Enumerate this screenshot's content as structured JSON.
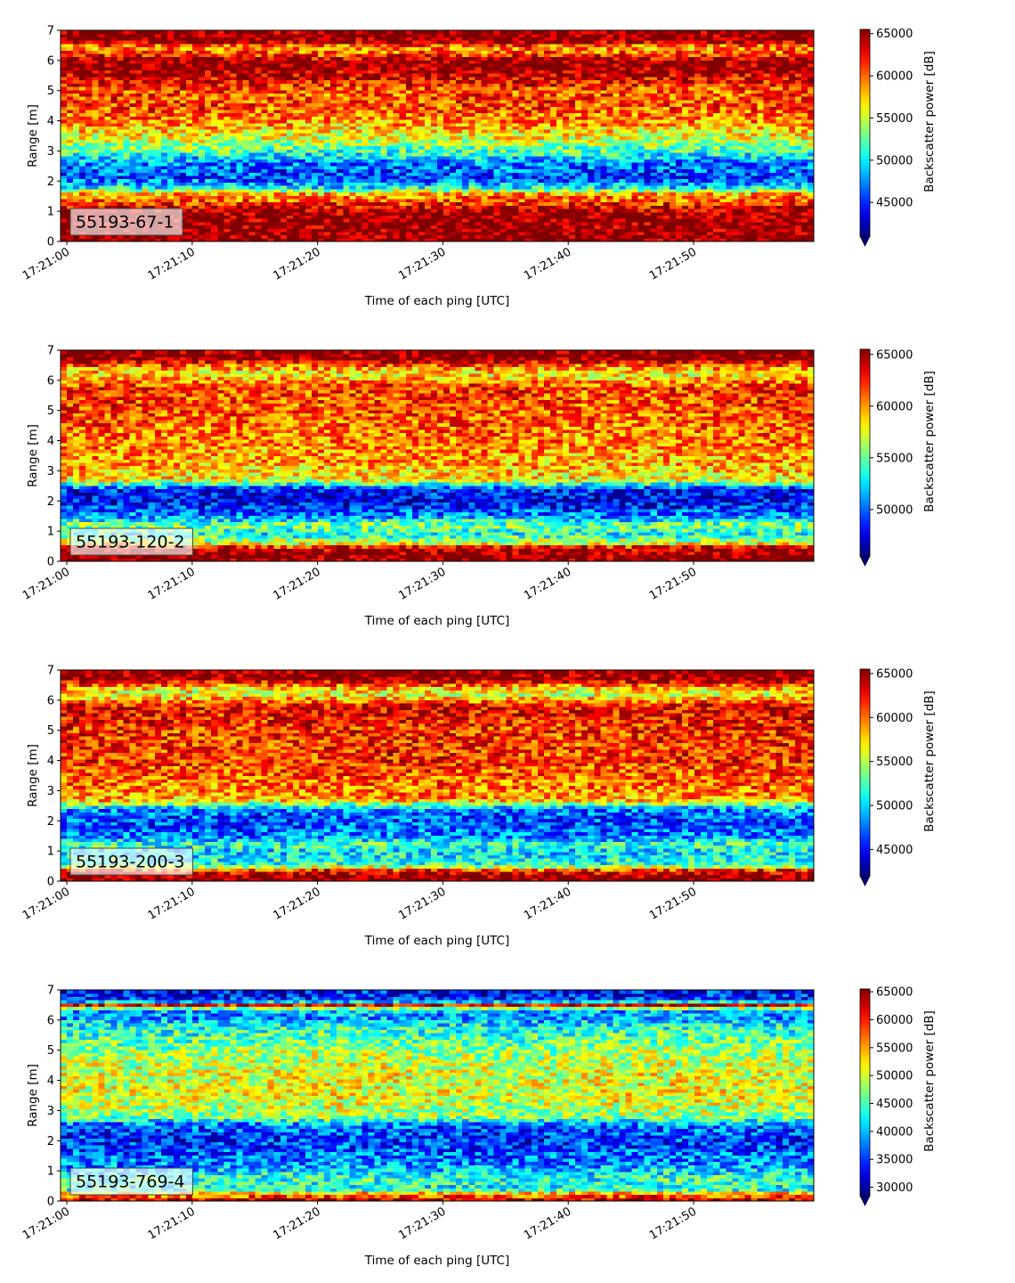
{
  "chart_data": [
    {
      "type": "heatmap",
      "panel_label": "55193-67-1",
      "xlabel": "Time of each ping [UTC]",
      "ylabel": "Range [m]",
      "x_ticks": [
        "17:21:00",
        "17:21:10",
        "17:21:20",
        "17:21:30",
        "17:21:40",
        "17:21:50"
      ],
      "y_ticks": [
        "0",
        "1",
        "2",
        "3",
        "4",
        "5",
        "6",
        "7"
      ],
      "ylim": [
        0,
        7
      ],
      "colorbar": {
        "label": "Backscatter power [dB]",
        "colormap": "jet",
        "vmin": 41000,
        "vmax": 65500,
        "extend": "min",
        "ticks": [
          "45000",
          "50000",
          "55000",
          "60000",
          "65000"
        ]
      },
      "range_profile": [
        [
          0.0,
          65500
        ],
        [
          0.25,
          65500
        ],
        [
          1.0,
          65000
        ],
        [
          1.3,
          61000
        ],
        [
          1.6,
          58000
        ],
        [
          1.8,
          50000
        ],
        [
          2.1,
          45500
        ],
        [
          2.6,
          47000
        ],
        [
          3.0,
          52000
        ],
        [
          3.5,
          56000
        ],
        [
          4.0,
          59000
        ],
        [
          4.5,
          61000
        ],
        [
          5.0,
          60500
        ],
        [
          5.6,
          64500
        ],
        [
          6.0,
          65500
        ],
        [
          6.2,
          61000
        ],
        [
          6.45,
          58500
        ],
        [
          6.65,
          65500
        ],
        [
          7.0,
          65500
        ]
      ]
    },
    {
      "type": "heatmap",
      "panel_label": "55193-120-2",
      "xlabel": "Time of each ping [UTC]",
      "ylabel": "Range [m]",
      "x_ticks": [
        "17:21:00",
        "17:21:10",
        "17:21:20",
        "17:21:30",
        "17:21:40",
        "17:21:50"
      ],
      "y_ticks": [
        "0",
        "1",
        "2",
        "3",
        "4",
        "5",
        "6",
        "7"
      ],
      "ylim": [
        0,
        7
      ],
      "colorbar": {
        "label": "Backscatter power [dB]",
        "colormap": "jet",
        "vmin": 45500,
        "vmax": 65500,
        "extend": "min",
        "ticks": [
          "50000",
          "55000",
          "60000",
          "65000"
        ]
      },
      "range_profile": [
        [
          0.0,
          65500
        ],
        [
          0.15,
          65500
        ],
        [
          0.45,
          64500
        ],
        [
          0.6,
          58000
        ],
        [
          0.9,
          53000
        ],
        [
          1.2,
          55500
        ],
        [
          1.5,
          51000
        ],
        [
          2.0,
          47500
        ],
        [
          2.4,
          48500
        ],
        [
          2.7,
          58000
        ],
        [
          3.2,
          59500
        ],
        [
          4.0,
          60500
        ],
        [
          5.0,
          61500
        ],
        [
          5.8,
          62000
        ],
        [
          6.2,
          58000
        ],
        [
          6.45,
          60000
        ],
        [
          6.7,
          65500
        ],
        [
          7.0,
          65500
        ]
      ]
    },
    {
      "type": "heatmap",
      "panel_label": "55193-200-3",
      "xlabel": "Time of each ping [UTC]",
      "ylabel": "Range [m]",
      "x_ticks": [
        "17:21:00",
        "17:21:10",
        "17:21:20",
        "17:21:30",
        "17:21:40",
        "17:21:50"
      ],
      "y_ticks": [
        "0",
        "1",
        "2",
        "3",
        "4",
        "5",
        "6",
        "7"
      ],
      "ylim": [
        0,
        7
      ],
      "colorbar": {
        "label": "Backscatter power [dB]",
        "colormap": "jet",
        "vmin": 42000,
        "vmax": 65500,
        "extend": "min",
        "ticks": [
          "45000",
          "50000",
          "55000",
          "60000",
          "65000"
        ]
      },
      "range_profile": [
        [
          0.0,
          65500
        ],
        [
          0.15,
          65500
        ],
        [
          0.35,
          63000
        ],
        [
          0.55,
          52000
        ],
        [
          1.0,
          50000
        ],
        [
          1.2,
          52500
        ],
        [
          1.5,
          48000
        ],
        [
          2.0,
          46500
        ],
        [
          2.4,
          48000
        ],
        [
          2.7,
          58500
        ],
        [
          3.2,
          60000
        ],
        [
          4.0,
          61500
        ],
        [
          5.0,
          61500
        ],
        [
          5.8,
          63000
        ],
        [
          6.2,
          56000
        ],
        [
          6.45,
          58500
        ],
        [
          6.7,
          65500
        ],
        [
          7.0,
          65500
        ]
      ]
    },
    {
      "type": "heatmap",
      "panel_label": "55193-769-4",
      "xlabel": "Time of each ping [UTC]",
      "ylabel": "Range [m]",
      "x_ticks": [
        "17:21:00",
        "17:21:10",
        "17:21:20",
        "17:21:30",
        "17:21:40",
        "17:21:50"
      ],
      "y_ticks": [
        "0",
        "1",
        "2",
        "3",
        "4",
        "5",
        "6",
        "7"
      ],
      "ylim": [
        0,
        7
      ],
      "colorbar": {
        "label": "Backscatter power [dB]",
        "colormap": "jet",
        "vmin": 28500,
        "vmax": 65500,
        "extend": "min",
        "ticks": [
          "30000",
          "35000",
          "40000",
          "45000",
          "50000",
          "55000",
          "60000",
          "65000"
        ]
      },
      "range_profile": [
        [
          0.0,
          65500
        ],
        [
          0.12,
          60000
        ],
        [
          0.25,
          55000
        ],
        [
          0.4,
          43000
        ],
        [
          0.8,
          44000
        ],
        [
          1.2,
          38500
        ],
        [
          2.0,
          34500
        ],
        [
          2.5,
          36500
        ],
        [
          2.8,
          47500
        ],
        [
          3.5,
          51000
        ],
        [
          4.3,
          50500
        ],
        [
          5.0,
          48000
        ],
        [
          5.8,
          43000
        ],
        [
          6.1,
          38500
        ],
        [
          6.35,
          40000
        ],
        [
          6.5,
          63000
        ],
        [
          6.65,
          35000
        ],
        [
          7.0,
          33000
        ]
      ]
    }
  ]
}
